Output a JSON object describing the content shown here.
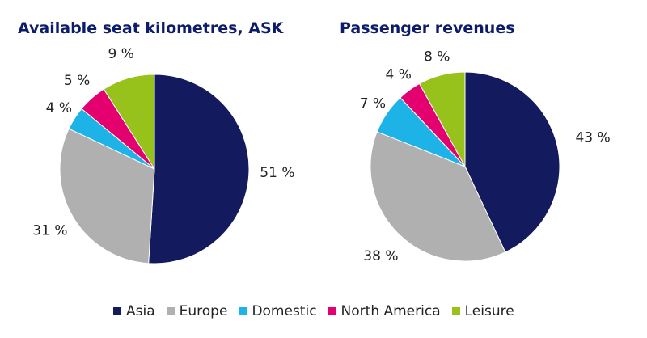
{
  "colors": {
    "Asia": "#141a5e",
    "Europe": "#b0b0b0",
    "Domestic": "#1eb3e6",
    "North America": "#e4006e",
    "Leisure": "#97c21c"
  },
  "legend": [
    "Asia",
    "Europe",
    "Domestic",
    "North America",
    "Leisure"
  ],
  "chart_data": [
    {
      "type": "pie",
      "title": "Available seat kilometres, ASK",
      "categories": [
        "Asia",
        "Europe",
        "Domestic",
        "North America",
        "Leisure"
      ],
      "values": [
        51,
        31,
        4,
        5,
        9
      ],
      "labels": [
        "51 %",
        "31 %",
        "4 %",
        "5 %",
        "9 %"
      ],
      "start": "12 o'clock",
      "direction": "clockwise",
      "legend_position": "bottom"
    },
    {
      "type": "pie",
      "title": "Passenger revenues",
      "categories": [
        "Asia",
        "Europe",
        "Domestic",
        "North America",
        "Leisure"
      ],
      "values": [
        43,
        38,
        7,
        4,
        8
      ],
      "labels": [
        "43 %",
        "38 %",
        "7 %",
        "4 %",
        "8 %"
      ],
      "start": "12 o'clock",
      "direction": "clockwise",
      "legend_position": "bottom"
    }
  ]
}
